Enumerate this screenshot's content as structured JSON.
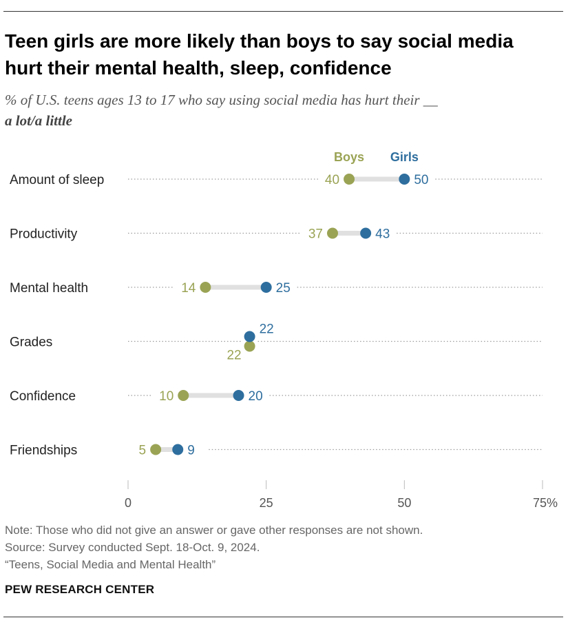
{
  "title": "Teen girls are more likely than boys to say social media hurt their mental health, sleep, confidence",
  "subtitle": {
    "line1": "% of U.S. teens ages 13 to 17 who say using social media has hurt their __",
    "line2": "a lot/a little"
  },
  "colors": {
    "boys": "#9aa354",
    "girls": "#2e6e9e",
    "connector": "#e0e0e0",
    "dots": "#9a9a9a",
    "axis_text": "#555555"
  },
  "chart_data": {
    "type": "dot-plot",
    "categories": [
      "Amount of sleep",
      "Productivity",
      "Mental health",
      "Grades",
      "Confidence",
      "Friendships"
    ],
    "series": [
      {
        "name": "Boys",
        "values": [
          40,
          37,
          14,
          22,
          10,
          5
        ]
      },
      {
        "name": "Girls",
        "values": [
          50,
          43,
          25,
          22,
          20,
          9
        ]
      }
    ],
    "xlim": [
      0,
      75
    ],
    "xticks": [
      "0",
      "25",
      "50",
      "75%"
    ],
    "xtick_values": [
      0,
      25,
      50,
      75
    ],
    "legend_position": "top, above first row"
  },
  "notes": {
    "note": "Note: Those who did not give an answer or gave other responses are not shown.",
    "source": "Source: Survey conducted Sept. 18-Oct. 9, 2024.",
    "report": "“Teens, Social Media and Mental Health”"
  },
  "org": "PEW RESEARCH CENTER"
}
